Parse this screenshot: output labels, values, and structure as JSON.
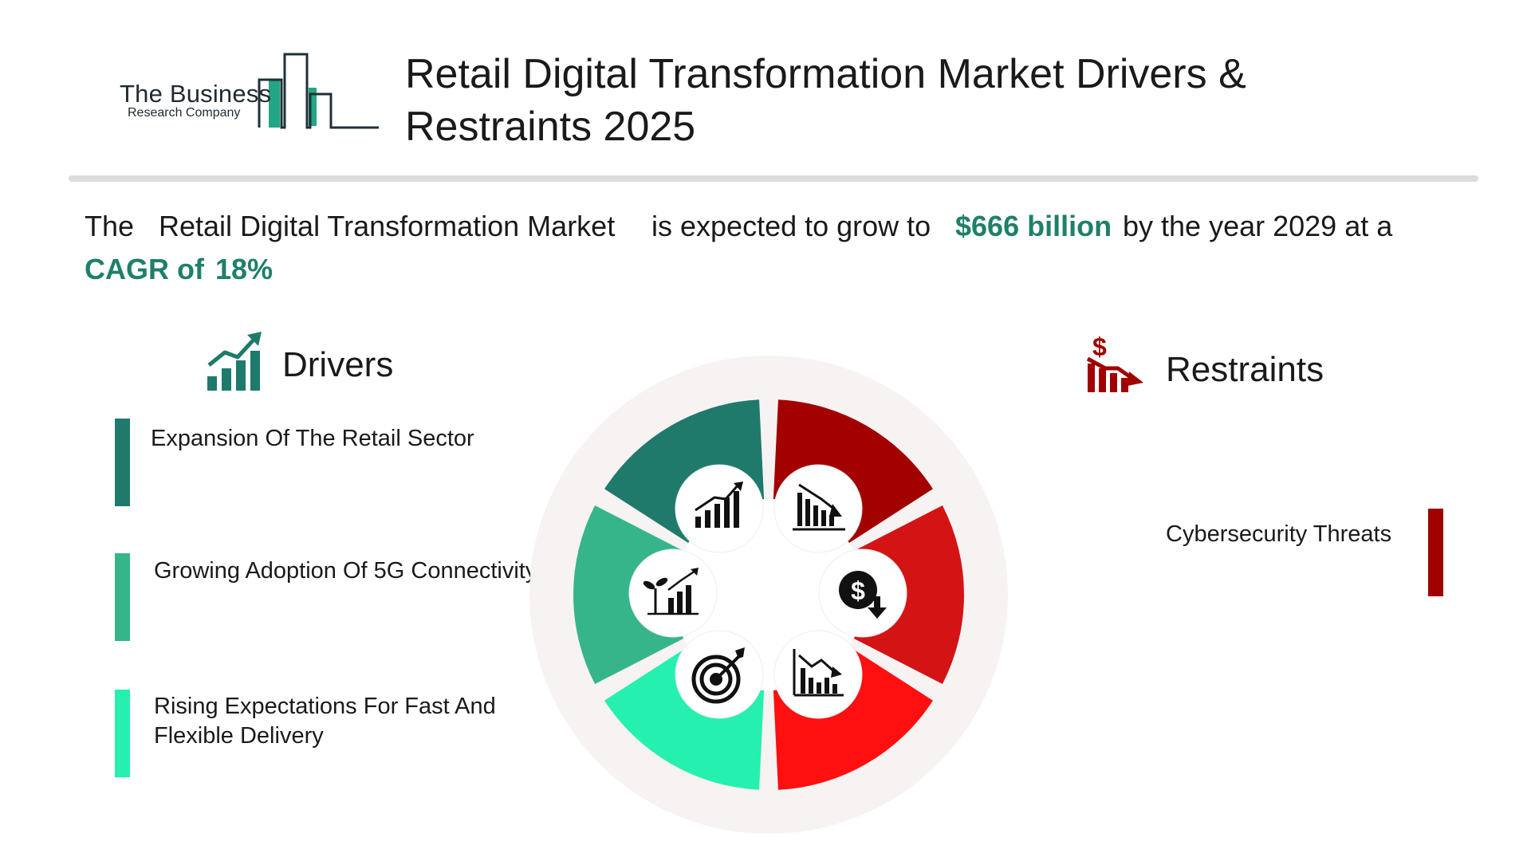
{
  "header": {
    "logo": {
      "line1": "The Business",
      "line2": "Research Company"
    },
    "title_line1": "Retail Digital Transformation Market Drivers &",
    "title_line2": "Restraints 2025"
  },
  "summary": {
    "prefix": "The",
    "market": "Retail Digital Transformation Market",
    "middle": "is expected to grow to",
    "value": "$666 billion",
    "suffix": "by the year 2029 at a",
    "cagr_label": "CAGR of",
    "cagr_value": "18%"
  },
  "drivers": {
    "title": "Drivers",
    "icon": "growth-chart-icon",
    "items": [
      {
        "label": "Expansion Of The Retail Sector",
        "color": "#1f7a6c"
      },
      {
        "label": "Growing Adoption Of 5G Connectivity",
        "color": "#36b58a"
      },
      {
        "label": "Rising Expectations For Fast And Flexible Delivery",
        "color": "#26f0b0"
      }
    ]
  },
  "restraints": {
    "title": "Restraints",
    "icon": "declining-dollar-chart-icon",
    "items": [
      {
        "label": "Cybersecurity Threats",
        "color": "#a00000"
      }
    ]
  },
  "wheel": {
    "segments": [
      {
        "side": "driver",
        "color": "#1f7a6c",
        "icon": "rising-bar-chart-icon"
      },
      {
        "side": "driver",
        "color": "#36b58a",
        "icon": "plant-growth-chart-icon"
      },
      {
        "side": "driver",
        "color": "#26f0b0",
        "icon": "target-icon"
      },
      {
        "side": "restraint",
        "color": "#a30000",
        "icon": "falling-bar-chart-icon"
      },
      {
        "side": "restraint",
        "color": "#d41414",
        "icon": "dollar-down-icon"
      },
      {
        "side": "restraint",
        "color": "#ff0f0f",
        "icon": "declining-line-chart-icon"
      }
    ]
  }
}
